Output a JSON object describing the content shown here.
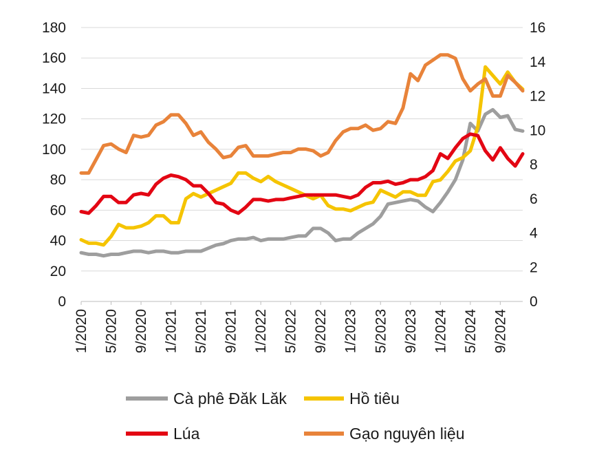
{
  "chart_data": {
    "type": "line",
    "title": "",
    "xlabel": "",
    "ylabel": "",
    "y_left": {
      "range": [
        0,
        180
      ],
      "ticks": [
        0,
        20,
        40,
        60,
        80,
        100,
        120,
        140,
        160,
        180
      ]
    },
    "y_right": {
      "range": [
        0,
        16
      ],
      "ticks": [
        0,
        2,
        4,
        6,
        8,
        10,
        12,
        14,
        16
      ]
    },
    "grid": true,
    "legend_position": "bottom",
    "x_tick_labels": [
      "1/2020",
      "5/2020",
      "9/2020",
      "1/2021",
      "5/2021",
      "9/2021",
      "1/2022",
      "5/2022",
      "9/2022",
      "1/2023",
      "5/2023",
      "9/2023",
      "1/2024",
      "5/2024",
      "9/2024"
    ],
    "x_start": "2020-01",
    "series": [
      {
        "name": "Cà phê Đăk Lăk",
        "axis": "left",
        "color": "#9e9e9e",
        "values": [
          32,
          31,
          31,
          30,
          31,
          31,
          32,
          33,
          33,
          32,
          33,
          33,
          32,
          32,
          33,
          33,
          33,
          35,
          37,
          38,
          40,
          41,
          41,
          42,
          40,
          41,
          41,
          41,
          42,
          43,
          43,
          48,
          48,
          45,
          40,
          41,
          41,
          45,
          48,
          51,
          56,
          64,
          65,
          66,
          67,
          66,
          62,
          59,
          65,
          72,
          80,
          93,
          117,
          112,
          123,
          126,
          121,
          122,
          113,
          112
        ]
      },
      {
        "name": "Hồ tiêu",
        "axis": "right",
        "color": "#f5c400",
        "values": [
          3.6,
          3.4,
          3.4,
          3.3,
          3.8,
          4.5,
          4.3,
          4.3,
          4.4,
          4.6,
          5.0,
          5.0,
          4.6,
          4.6,
          6.0,
          6.3,
          6.1,
          6.3,
          6.5,
          6.7,
          6.9,
          7.5,
          7.5,
          7.2,
          7.0,
          7.3,
          7.0,
          6.8,
          6.6,
          6.4,
          6.2,
          6.0,
          6.2,
          5.6,
          5.4,
          5.4,
          5.3,
          5.5,
          5.7,
          5.8,
          6.5,
          6.3,
          6.1,
          6.4,
          6.4,
          6.2,
          6.2,
          7.0,
          7.1,
          7.6,
          8.2,
          8.4,
          8.8,
          10.2,
          13.7,
          13.2,
          12.7,
          13.4,
          12.8,
          12.4
        ]
      },
      {
        "name": "Lúa",
        "axis": "left",
        "color": "#e30613",
        "values": [
          59,
          58,
          63,
          69,
          69,
          65,
          65,
          70,
          71,
          70,
          77,
          81,
          83,
          82,
          80,
          76,
          76,
          71,
          65,
          64,
          60,
          58,
          62,
          67,
          67,
          66,
          67,
          67,
          68,
          69,
          70,
          70,
          70,
          70,
          70,
          69,
          68,
          70,
          75,
          78,
          78,
          79,
          77,
          78,
          80,
          80,
          82,
          86,
          97,
          94,
          101,
          107,
          110,
          109,
          99,
          93,
          101,
          94,
          89,
          97
        ]
      },
      {
        "name": "Gạo nguyên liệu",
        "axis": "right",
        "color": "#e8833a",
        "values": [
          7.5,
          7.5,
          8.3,
          9.1,
          9.2,
          8.9,
          8.7,
          9.7,
          9.6,
          9.7,
          10.3,
          10.5,
          10.9,
          10.9,
          10.4,
          9.7,
          9.9,
          9.3,
          8.9,
          8.4,
          8.5,
          9.0,
          9.1,
          8.5,
          8.5,
          8.5,
          8.6,
          8.7,
          8.7,
          8.9,
          8.9,
          8.8,
          8.5,
          8.7,
          9.4,
          9.9,
          10.1,
          10.1,
          10.3,
          10.0,
          10.1,
          10.5,
          10.4,
          11.3,
          13.3,
          12.9,
          13.8,
          14.1,
          14.4,
          14.4,
          14.2,
          13.0,
          12.3,
          12.7,
          13.0,
          12.0,
          12.0,
          13.2,
          12.8,
          12.3
        ]
      }
    ]
  },
  "legend": [
    {
      "label": "Cà phê Đăk Lăk",
      "color": "#9e9e9e"
    },
    {
      "label": "Hồ tiêu",
      "color": "#f5c400"
    },
    {
      "label": "Lúa",
      "color": "#e30613"
    },
    {
      "label": "Gạo nguyên liệu",
      "color": "#e8833a"
    }
  ]
}
